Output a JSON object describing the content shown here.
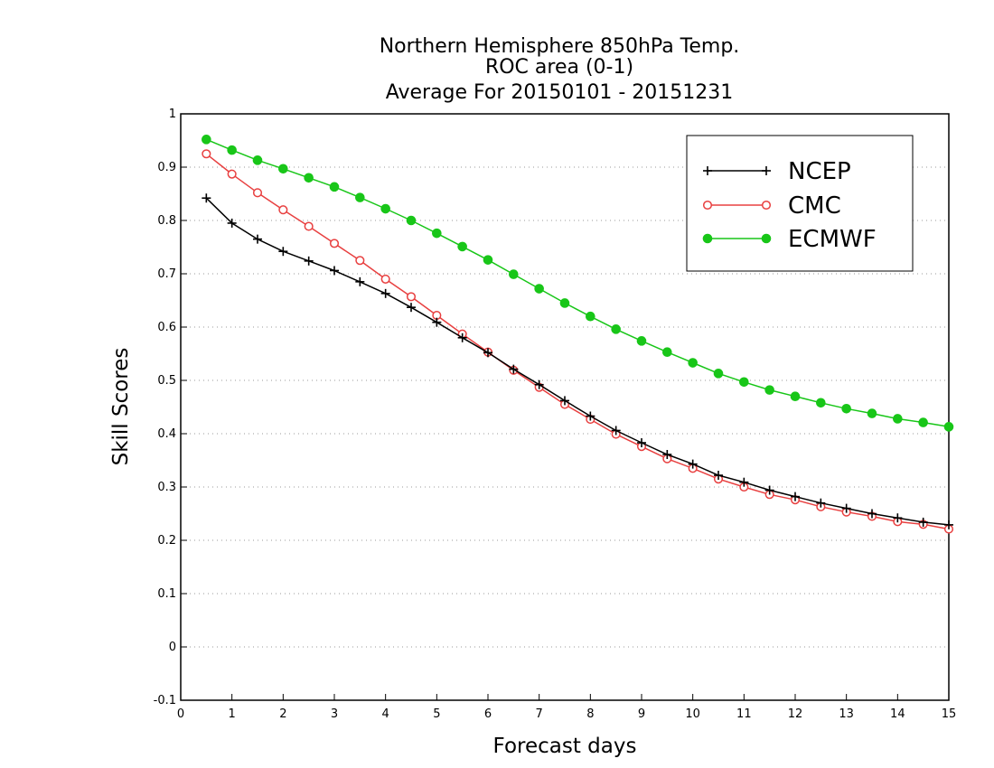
{
  "chart_data": {
    "type": "line",
    "title": [
      "Northern Hemisphere 850hPa Temp.",
      "ROC area (0-1)",
      "Average For 20150101 - 20151231"
    ],
    "xlabel": "Forecast days",
    "ylabel": "Skill Scores",
    "xlim": [
      0,
      15
    ],
    "ylim": [
      -0.1,
      1
    ],
    "xticks": [
      0,
      1,
      2,
      3,
      4,
      5,
      6,
      7,
      8,
      9,
      10,
      11,
      12,
      13,
      14,
      15
    ],
    "xtick_labels": [
      "0",
      "1",
      "2",
      "3",
      "4",
      "5",
      "6",
      "7",
      "8",
      "9",
      "10",
      "11",
      "12",
      "13",
      "14",
      "15"
    ],
    "yticks": [
      -0.1,
      0,
      0.1,
      0.2,
      0.3,
      0.4,
      0.5,
      0.6,
      0.7,
      0.8,
      0.9,
      1
    ],
    "ytick_labels": [
      "-0.1",
      "0",
      "0.1",
      "0.2",
      "0.3",
      "0.4",
      "0.5",
      "0.6",
      "0.7",
      "0.8",
      "0.9",
      "1"
    ],
    "grid": "horizontal dotted",
    "legend_position": "top-right",
    "x": [
      0.5,
      1,
      1.5,
      2,
      2.5,
      3,
      3.5,
      4,
      4.5,
      5,
      5.5,
      6,
      6.5,
      7,
      7.5,
      8,
      8.5,
      9,
      9.5,
      10,
      10.5,
      11,
      11.5,
      12,
      12.5,
      13,
      13.5,
      14,
      14.5,
      15
    ],
    "series": [
      {
        "name": "NCEP",
        "color": "#000000",
        "marker": "plus",
        "values": [
          0.842,
          0.795,
          0.765,
          0.742,
          0.724,
          0.706,
          0.685,
          0.663,
          0.637,
          0.609,
          0.58,
          0.552,
          0.521,
          0.492,
          0.462,
          0.433,
          0.406,
          0.383,
          0.361,
          0.343,
          0.322,
          0.309,
          0.294,
          0.282,
          0.27,
          0.26,
          0.25,
          0.242,
          0.234,
          0.229
        ]
      },
      {
        "name": "CMC",
        "color": "#e84040",
        "marker": "open-circle",
        "values": [
          0.925,
          0.887,
          0.852,
          0.82,
          0.789,
          0.757,
          0.725,
          0.69,
          0.657,
          0.622,
          0.587,
          0.553,
          0.519,
          0.487,
          0.455,
          0.427,
          0.399,
          0.376,
          0.353,
          0.335,
          0.315,
          0.3,
          0.286,
          0.276,
          0.263,
          0.253,
          0.245,
          0.235,
          0.23,
          0.221
        ]
      },
      {
        "name": "ECMWF",
        "color": "#18c618",
        "marker": "filled-circle",
        "values": [
          0.952,
          0.932,
          0.913,
          0.897,
          0.88,
          0.863,
          0.843,
          0.822,
          0.8,
          0.776,
          0.751,
          0.726,
          0.699,
          0.672,
          0.645,
          0.62,
          0.596,
          0.574,
          0.553,
          0.533,
          0.513,
          0.497,
          0.482,
          0.47,
          0.458,
          0.447,
          0.438,
          0.428,
          0.421,
          0.413
        ]
      }
    ]
  }
}
